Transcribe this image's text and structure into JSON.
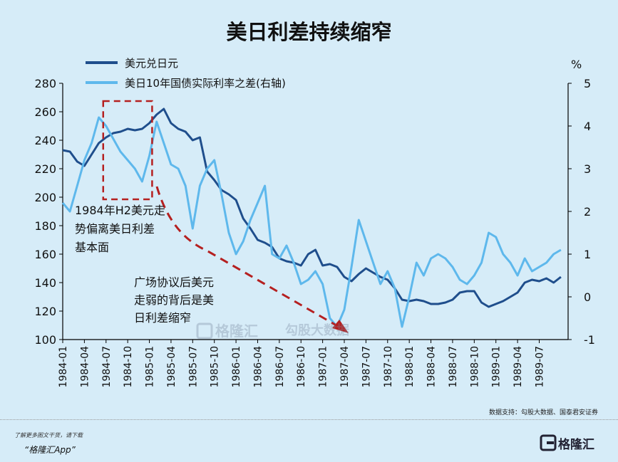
{
  "footer": {
    "promo": "了解更多图文干货，请下载",
    "app": "“格隆汇App”",
    "brand": "格隆汇"
  },
  "chart_data": {
    "type": "line",
    "title": "美日利差持续缩窄",
    "source": "数据支持：勾股大数据、国泰君安证券",
    "watermark": [
      "格隆汇",
      "勾股大数据"
    ],
    "colors": {
      "usdjpy": "#1f4e8c",
      "spread": "#5eb8ec",
      "annotation": "#b52020",
      "axis": "#000000"
    },
    "x_tick_labels": [
      "1984-01",
      "1984-04",
      "1984-07",
      "1984-10",
      "1985-01",
      "1985-04",
      "1985-07",
      "1985-10",
      "1986-01",
      "1986-04",
      "1986-07",
      "1986-10",
      "1987-01",
      "1987-04",
      "1987-07",
      "1987-10",
      "1988-01",
      "1988-04",
      "1988-07",
      "1988-10",
      "1989-01",
      "1989-04",
      "1989-07"
    ],
    "y_left": {
      "ylim": [
        100,
        280
      ],
      "ticks": [
        100,
        120,
        140,
        160,
        180,
        200,
        220,
        240,
        260,
        280
      ]
    },
    "y_right": {
      "unit": "%",
      "ylim": [
        -1,
        5
      ],
      "ticks": [
        -1,
        0,
        1,
        2,
        3,
        4,
        5
      ]
    },
    "legend_position": "top-left",
    "series": [
      {
        "name": "美元兑日元",
        "axis": "left",
        "x": [
          "1984-01",
          "1984-02",
          "1984-03",
          "1984-04",
          "1984-05",
          "1984-06",
          "1984-07",
          "1984-08",
          "1984-09",
          "1984-10",
          "1984-11",
          "1984-12",
          "1985-01",
          "1985-02",
          "1985-03",
          "1985-04",
          "1985-05",
          "1985-06",
          "1985-07",
          "1985-08",
          "1985-09",
          "1985-10",
          "1985-11",
          "1985-12",
          "1986-01",
          "1986-02",
          "1986-03",
          "1986-04",
          "1986-05",
          "1986-06",
          "1986-07",
          "1986-08",
          "1986-09",
          "1986-10",
          "1986-11",
          "1986-12",
          "1987-01",
          "1987-02",
          "1987-03",
          "1987-04",
          "1987-05",
          "1987-06",
          "1987-07",
          "1987-08",
          "1987-09",
          "1987-10",
          "1987-11",
          "1987-12",
          "1988-01",
          "1988-02",
          "1988-03",
          "1988-04",
          "1988-05",
          "1988-06",
          "1988-07",
          "1988-08",
          "1988-09",
          "1988-10",
          "1988-11",
          "1988-12",
          "1989-01",
          "1989-02",
          "1989-03",
          "1989-04",
          "1989-05",
          "1989-06",
          "1989-07",
          "1989-08",
          "1989-09",
          "1989-10"
        ],
        "values": [
          233,
          232,
          225,
          222,
          230,
          238,
          242,
          245,
          246,
          248,
          247,
          248,
          252,
          258,
          262,
          252,
          248,
          246,
          240,
          242,
          218,
          212,
          205,
          202,
          198,
          185,
          178,
          170,
          168,
          165,
          157,
          155,
          154,
          152,
          160,
          163,
          152,
          153,
          151,
          144,
          141,
          146,
          150,
          147,
          144,
          142,
          136,
          128,
          127,
          128,
          127,
          125,
          125,
          126,
          128,
          133,
          134,
          134,
          126,
          123,
          125,
          127,
          130,
          133,
          140,
          142,
          141,
          143,
          140,
          144
        ]
      },
      {
        "name": "美日10年国债实际利率之差(右轴)",
        "axis": "right",
        "x": [
          "1984-01",
          "1984-02",
          "1984-03",
          "1984-04",
          "1984-05",
          "1984-06",
          "1984-07",
          "1984-08",
          "1984-09",
          "1984-10",
          "1984-11",
          "1984-12",
          "1985-01",
          "1985-02",
          "1985-03",
          "1985-04",
          "1985-05",
          "1985-06",
          "1985-07",
          "1985-08",
          "1985-09",
          "1985-10",
          "1985-11",
          "1985-12",
          "1986-01",
          "1986-02",
          "1986-03",
          "1986-04",
          "1986-05",
          "1986-06",
          "1986-07",
          "1986-08",
          "1986-09",
          "1986-10",
          "1986-11",
          "1986-12",
          "1987-01",
          "1987-02",
          "1987-03",
          "1987-04",
          "1987-05",
          "1987-06",
          "1987-07",
          "1987-08",
          "1987-09",
          "1987-10",
          "1987-11",
          "1987-12",
          "1988-01",
          "1988-02",
          "1988-03",
          "1988-04",
          "1988-05",
          "1988-06",
          "1988-07",
          "1988-08",
          "1988-09",
          "1988-10",
          "1988-11",
          "1988-12",
          "1989-01",
          "1989-02",
          "1989-03",
          "1989-04",
          "1989-05",
          "1989-06",
          "1989-07",
          "1989-08",
          "1989-09",
          "1989-10"
        ],
        "values": [
          2.2,
          2.0,
          2.6,
          3.2,
          3.6,
          4.2,
          4.0,
          3.7,
          3.4,
          3.2,
          3.0,
          2.7,
          3.3,
          4.1,
          3.6,
          3.1,
          3.0,
          2.6,
          1.6,
          2.6,
          3.0,
          3.2,
          2.4,
          1.5,
          1.0,
          1.3,
          1.8,
          2.2,
          2.6,
          1.0,
          0.9,
          1.2,
          0.8,
          0.3,
          0.4,
          0.6,
          0.3,
          -0.5,
          -0.7,
          -0.3,
          0.7,
          1.8,
          1.3,
          0.8,
          0.3,
          0.6,
          0.2,
          -0.7,
          0.0,
          0.8,
          0.5,
          0.9,
          1.0,
          0.9,
          0.7,
          0.4,
          0.3,
          0.5,
          0.8,
          1.5,
          1.4,
          1.0,
          0.8,
          0.5,
          0.9,
          0.6,
          0.7,
          0.8,
          1.0,
          1.1
        ]
      }
    ],
    "annotations": {
      "box_label_lines": [
        "1984年H2美元走",
        "势偏离美日利差",
        "基本面"
      ],
      "arrow_label_lines": [
        "广场协议后美元",
        "走弱的背后是美",
        "日利差缩窄"
      ],
      "box_range": [
        "1984-07",
        "1984-12"
      ]
    }
  }
}
